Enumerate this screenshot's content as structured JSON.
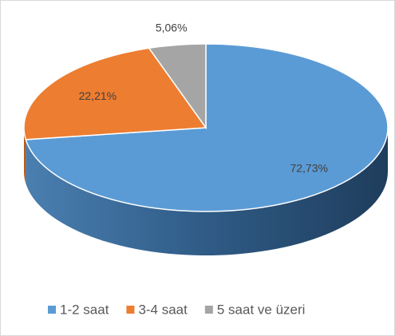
{
  "chart_data": {
    "type": "pie",
    "categories": [
      "1-2 saat",
      "3-4 saat",
      "5 saat ve üzeri"
    ],
    "values": [
      72.73,
      22.21,
      5.06
    ],
    "value_labels": [
      "72,73%",
      "22,21%",
      "5,06%"
    ],
    "colors": [
      "#5b9bd5",
      "#ed7d31",
      "#a5a5a5"
    ],
    "legend": "bottom"
  }
}
